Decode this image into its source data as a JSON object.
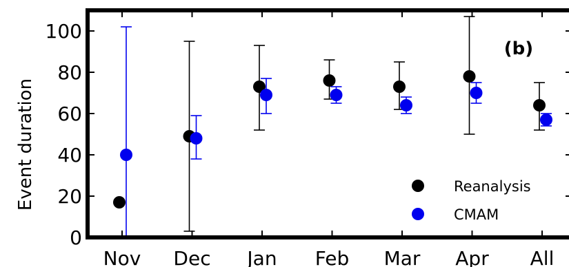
{
  "chart_data": {
    "type": "scatter",
    "panel_label": "(b)",
    "ylabel": "Event duration",
    "xlabel": "",
    "categories": [
      "Nov",
      "Dec",
      "Jan",
      "Feb",
      "Mar",
      "Apr",
      "All"
    ],
    "yticks": [
      0,
      20,
      40,
      60,
      80,
      100
    ],
    "ylim": [
      0,
      110
    ],
    "grid": false,
    "legend_position": "bottom-right",
    "series": [
      {
        "name": "Reanalysis",
        "color": "#000000",
        "values": [
          17,
          49,
          73,
          76,
          73,
          78,
          64
        ],
        "err_low": [
          0,
          3,
          52,
          67,
          62,
          50,
          52
        ],
        "err_high": [
          0,
          95,
          93,
          86,
          85,
          107,
          75
        ]
      },
      {
        "name": "CMAM",
        "color": "#0000ee",
        "values": [
          40,
          48,
          69,
          69,
          64,
          70,
          57
        ],
        "err_low": [
          0,
          38,
          60,
          65,
          60,
          65,
          54
        ],
        "err_high": [
          102,
          59,
          77,
          73,
          68,
          75,
          60
        ]
      }
    ]
  }
}
